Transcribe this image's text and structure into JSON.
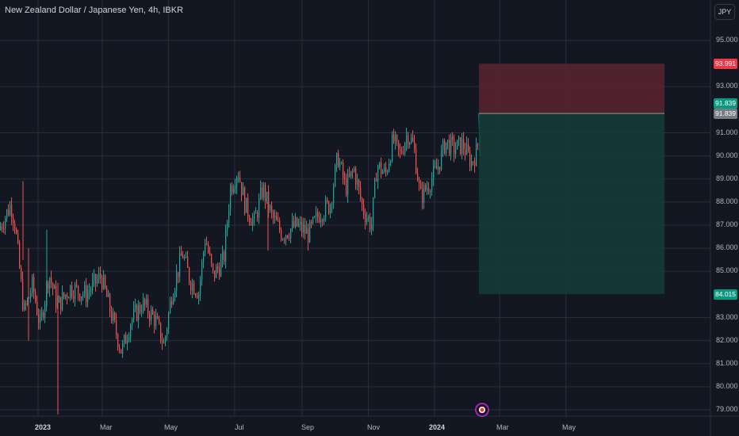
{
  "header": {
    "title": "New Zealand Dollar / Japanese Yen, 4h, IBKR",
    "currency_button": "JPY"
  },
  "colors": {
    "background": "#131722",
    "grid": "#2a2e39",
    "candle_up": "#26a69a",
    "candle_down": "#ef5350",
    "stop_zone": "#5c2430",
    "target_zone": "#133d3a",
    "stop_tag": "#f23645",
    "target_tag": "#089981",
    "entry_tag": "#787b86"
  },
  "price_axis": {
    "labels": [
      "95.000",
      "93.000",
      "91.000",
      "90.000",
      "89.000",
      "88.000",
      "87.000",
      "86.000",
      "85.000",
      "83.000",
      "82.000",
      "81.000",
      "80.000",
      "79.000"
    ]
  },
  "tags": {
    "stop": "93.991",
    "current": "91.839",
    "entry": "91.839",
    "target": "84.015"
  },
  "time_axis": {
    "labels": [
      {
        "text": "2023",
        "bold": true
      },
      {
        "text": "Mar",
        "bold": false
      },
      {
        "text": "May",
        "bold": false
      },
      {
        "text": "Jul",
        "bold": false
      },
      {
        "text": "Sep",
        "bold": false
      },
      {
        "text": "Nov",
        "bold": false
      },
      {
        "text": "2024",
        "bold": true
      },
      {
        "text": "Mar",
        "bold": false
      },
      {
        "text": "May",
        "bold": false
      }
    ]
  },
  "chart_data": {
    "type": "candlestick",
    "symbol": "NZDJPY",
    "interval": "4h",
    "source": "IBKR",
    "ylim": [
      78.8,
      95.8
    ],
    "xlim": [
      "2022-11-27",
      "2024-07-10"
    ],
    "price_path": [
      [
        "2022-11-27",
        86.8
      ],
      [
        "2022-12-08",
        87.9
      ],
      [
        "2022-12-12",
        87.0
      ],
      [
        "2022-12-20",
        83.2
      ],
      [
        "2022-12-28",
        84.4
      ],
      [
        "2023-01-04",
        82.6
      ],
      [
        "2023-01-12",
        84.9
      ],
      [
        "2023-01-20",
        83.5
      ],
      [
        "2023-02-01",
        84.3
      ],
      [
        "2023-02-15",
        84.0
      ],
      [
        "2023-03-01",
        84.8
      ],
      [
        "2023-03-10",
        83.2
      ],
      [
        "2023-03-20",
        81.5
      ],
      [
        "2023-03-28",
        82.8
      ],
      [
        "2023-04-08",
        83.6
      ],
      [
        "2023-04-20",
        82.9
      ],
      [
        "2023-04-28",
        81.8
      ],
      [
        "2023-05-05",
        84.0
      ],
      [
        "2023-05-15",
        85.8
      ],
      [
        "2023-05-22",
        84.6
      ],
      [
        "2023-05-30",
        84.1
      ],
      [
        "2023-06-05",
        86.5
      ],
      [
        "2023-06-12",
        84.8
      ],
      [
        "2023-06-22",
        85.5
      ],
      [
        "2023-06-28",
        88.6
      ],
      [
        "2023-07-05",
        89.4
      ],
      [
        "2023-07-12",
        87.8
      ],
      [
        "2023-07-20",
        87.1
      ],
      [
        "2023-07-28",
        88.6
      ],
      [
        "2023-08-05",
        87.4
      ],
      [
        "2023-08-15",
        86.6
      ],
      [
        "2023-08-28",
        87.0
      ],
      [
        "2023-09-08",
        86.6
      ],
      [
        "2023-09-18",
        87.5
      ],
      [
        "2023-09-28",
        87.9
      ],
      [
        "2023-10-05",
        90.0
      ],
      [
        "2023-10-12",
        88.6
      ],
      [
        "2023-10-20",
        89.4
      ],
      [
        "2023-10-28",
        87.7
      ],
      [
        "2023-11-05",
        87.0
      ],
      [
        "2023-11-10",
        89.6
      ],
      [
        "2023-11-18",
        89.2
      ],
      [
        "2023-11-25",
        90.7
      ],
      [
        "2023-12-01",
        90.0
      ],
      [
        "2023-12-08",
        91.0
      ],
      [
        "2023-12-14",
        90.4
      ],
      [
        "2023-12-20",
        88.2
      ],
      [
        "2023-12-28",
        88.8
      ],
      [
        "2024-01-05",
        89.5
      ],
      [
        "2024-01-12",
        90.6
      ],
      [
        "2024-01-20",
        90.3
      ],
      [
        "2024-01-28",
        90.5
      ],
      [
        "2024-02-05",
        89.7
      ],
      [
        "2024-02-10",
        90.2
      ],
      [
        "2024-02-15",
        91.839
      ]
    ],
    "annotations": [
      {
        "type": "short_position",
        "entry": 91.839,
        "stop": 93.991,
        "target": 84.015
      }
    ],
    "grid": true
  }
}
